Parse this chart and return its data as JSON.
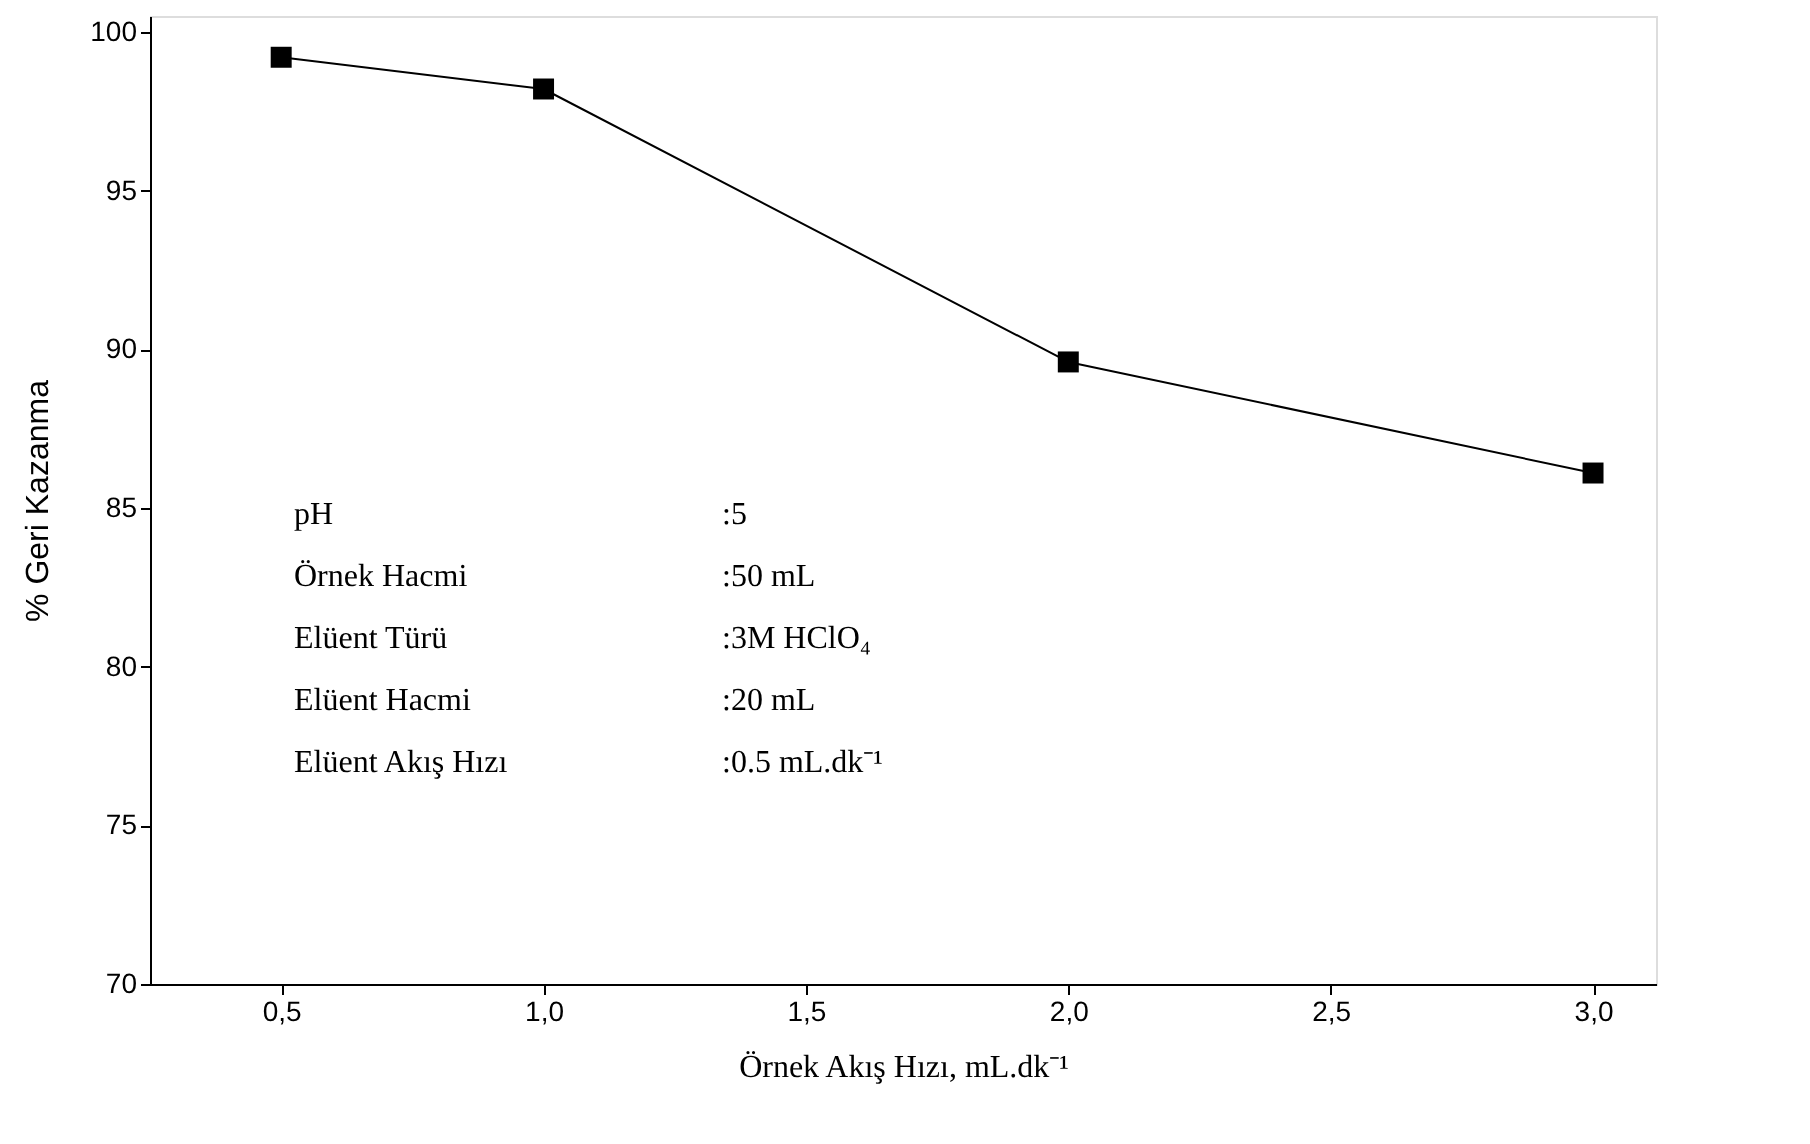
{
  "chart_data": {
    "type": "line",
    "xlabel": "Örnek Akış Hızı, mL.dk⁻¹",
    "ylabel": "% Geri Kazanma",
    "x": [
      0.5,
      1.0,
      2.0,
      3.0
    ],
    "series": [
      {
        "color": "#000000",
        "values": [
          99.2,
          98.2,
          89.6,
          86.1
        ]
      }
    ],
    "xlim": [
      0.25,
      3.12
    ],
    "ylim": [
      70,
      100.5
    ],
    "xticks": [
      {
        "value": 0.5,
        "label": "0,5"
      },
      {
        "value": 1.0,
        "label": "1,0"
      },
      {
        "value": 1.5,
        "label": "1,5"
      },
      {
        "value": 2.0,
        "label": "2,0"
      },
      {
        "value": 2.5,
        "label": "2,5"
      },
      {
        "value": 3.0,
        "label": "3,0"
      }
    ],
    "yticks": [
      70,
      75,
      80,
      85,
      90,
      95,
      100
    ],
    "marker": "square",
    "line_style": "solid",
    "grid": false,
    "annotations": [
      "pH :5",
      "Örnek Hacmi :50 mL",
      "Elüent Türü :3M HClO₄",
      "Elüent Hacmi :20 mL",
      "Elüent Akış Hızı :0.5 mL.dk⁻¹"
    ]
  }
}
